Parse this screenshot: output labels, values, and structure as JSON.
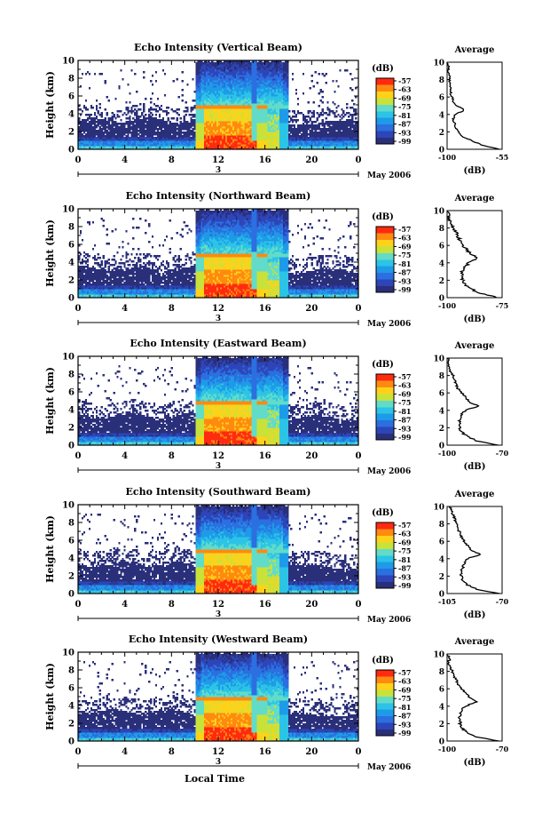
{
  "figure": {
    "xlabel": "Local Time",
    "x_ticks": [
      "0",
      "4",
      "8",
      "12",
      "16",
      "20",
      "0"
    ],
    "date_marker": "3",
    "date_text": "May 2006",
    "ylabel": "Height (km)",
    "y_ticks": [
      "0",
      "2",
      "4",
      "6",
      "8",
      "10"
    ],
    "colorbar_unit": "(dB)",
    "colorbar_ticks": [
      "-57",
      "-63",
      "-69",
      "-75",
      "-81",
      "-87",
      "-93",
      "-99"
    ],
    "colorbar_colors": [
      "#2a2f7a",
      "#2d45b8",
      "#2b6fe0",
      "#1e9be8",
      "#2cc4e6",
      "#62dcc8",
      "#c8e23a",
      "#ffd21a",
      "#ff8a10",
      "#ff2a10"
    ],
    "average_title": "Average",
    "average_xlabel": "(dB)"
  },
  "chart_data": [
    {
      "type": "heatmap",
      "title": "Echo Intensity (Vertical Beam)",
      "xlabel": "Local Time",
      "ylabel": "Height (km)",
      "xlim": [
        0,
        24
      ],
      "ylim": [
        0,
        10
      ],
      "clim": [
        -99,
        -57
      ],
      "features": {
        "rain_start_h": 10,
        "rain_end_h": 18,
        "rain_gap_h": [
          14.8,
          15.3
        ],
        "bright_band_km": 4.7
      },
      "average_profile": {
        "title": "Average",
        "xlabel": "(dB)",
        "xlim": [
          -100,
          -55
        ],
        "x_ticks": [
          "-100",
          "-55"
        ],
        "height_km": [
          0,
          0.5,
          1,
          1.5,
          2,
          2.5,
          3,
          3.5,
          4,
          4.5,
          5,
          5.5,
          6,
          6.5,
          7,
          7.5,
          8,
          8.5,
          9,
          9.5,
          10
        ],
        "db": [
          -57,
          -72,
          -80,
          -88,
          -91,
          -93,
          -94,
          -95,
          -93,
          -86,
          -92,
          -95,
          -96,
          -97,
          -97,
          -98,
          -98,
          -98,
          -99,
          -99,
          -100
        ]
      }
    },
    {
      "type": "heatmap",
      "title": "Echo Intensity (Northward Beam)",
      "xlabel": "Local Time",
      "ylabel": "Height (km)",
      "xlim": [
        0,
        24
      ],
      "ylim": [
        0,
        10
      ],
      "clim": [
        -99,
        -57
      ],
      "features": {
        "rain_start_h": 10,
        "rain_end_h": 18,
        "rain_gap_h": [
          14.8,
          15.3
        ],
        "bright_band_km": 4.7
      },
      "average_profile": {
        "title": "Average",
        "xlabel": "(dB)",
        "xlim": [
          -100,
          -75
        ],
        "x_ticks": [
          "-100",
          "-75"
        ],
        "height_km": [
          0,
          0.5,
          1,
          1.5,
          2,
          2.5,
          3,
          3.5,
          4,
          4.5,
          5,
          5.5,
          6,
          6.5,
          7,
          7.5,
          8,
          8.5,
          9,
          9.5,
          10
        ],
        "db": [
          -77,
          -85,
          -89,
          -92,
          -93,
          -93,
          -93,
          -92,
          -90,
          -86,
          -89,
          -91,
          -93,
          -94,
          -95,
          -96,
          -97,
          -98,
          -99,
          -99,
          -100
        ]
      }
    },
    {
      "type": "heatmap",
      "title": "Echo Intensity (Eastward Beam)",
      "xlabel": "Local Time",
      "ylabel": "Height (km)",
      "xlim": [
        0,
        24
      ],
      "ylim": [
        0,
        10
      ],
      "clim": [
        -99,
        -57
      ],
      "features": {
        "rain_start_h": 10,
        "rain_end_h": 18,
        "rain_gap_h": [
          14.8,
          15.3
        ],
        "bright_band_km": 4.7
      },
      "average_profile": {
        "title": "Average",
        "xlabel": "(dB)",
        "xlim": [
          -100,
          -70
        ],
        "x_ticks": [
          "-100",
          "-70"
        ],
        "height_km": [
          0,
          0.5,
          1,
          1.5,
          2,
          2.5,
          3,
          3.5,
          4,
          4.5,
          5,
          5.5,
          6,
          6.5,
          7,
          7.5,
          8,
          8.5,
          9,
          9.5,
          10
        ],
        "db": [
          -72,
          -84,
          -89,
          -92,
          -93,
          -93,
          -93,
          -92,
          -90,
          -83,
          -88,
          -90,
          -92,
          -94,
          -95,
          -96,
          -97,
          -98,
          -99,
          -99,
          -100
        ]
      }
    },
    {
      "type": "heatmap",
      "title": "Echo Intensity (Southward Beam)",
      "xlabel": "Local Time",
      "ylabel": "Height (km)",
      "xlim": [
        0,
        24
      ],
      "ylim": [
        0,
        10
      ],
      "clim": [
        -99,
        -57
      ],
      "features": {
        "rain_start_h": 10,
        "rain_end_h": 18,
        "rain_gap_h": [
          14.8,
          15.3
        ],
        "bright_band_km": 4.7
      },
      "average_profile": {
        "title": "Average",
        "xlabel": "(dB)",
        "xlim": [
          -105,
          -70
        ],
        "x_ticks": [
          "-105",
          "-70"
        ],
        "height_km": [
          0,
          0.5,
          1,
          1.5,
          2,
          2.5,
          3,
          3.5,
          4,
          4.5,
          5,
          5.5,
          6,
          6.5,
          7,
          7.5,
          8,
          8.5,
          9,
          9.5,
          10
        ],
        "db": [
          -72,
          -86,
          -92,
          -95,
          -96,
          -96,
          -95,
          -94,
          -92,
          -84,
          -90,
          -92,
          -94,
          -96,
          -97,
          -98,
          -99,
          -100,
          -101,
          -102,
          -103
        ]
      }
    },
    {
      "type": "heatmap",
      "title": "Echo Intensity (Westward Beam)",
      "xlabel": "Local Time",
      "ylabel": "Height (km)",
      "xlim": [
        0,
        24
      ],
      "ylim": [
        0,
        10
      ],
      "clim": [
        -99,
        -57
      ],
      "features": {
        "rain_start_h": 10,
        "rain_end_h": 18,
        "rain_gap_h": [
          14.8,
          15.3
        ],
        "bright_band_km": 4.7
      },
      "average_profile": {
        "title": "Average",
        "xlabel": "(dB)",
        "xlim": [
          -100,
          -70
        ],
        "x_ticks": [
          "-100",
          "-70"
        ],
        "height_km": [
          0,
          0.5,
          1,
          1.5,
          2,
          2.5,
          3,
          3.5,
          4,
          4.5,
          5,
          5.5,
          6,
          6.5,
          7,
          7.5,
          8,
          8.5,
          9,
          9.5,
          10
        ],
        "db": [
          -72,
          -84,
          -89,
          -92,
          -93,
          -93,
          -93,
          -92,
          -90,
          -84,
          -88,
          -90,
          -92,
          -94,
          -95,
          -96,
          -97,
          -98,
          -99,
          -99,
          -100
        ]
      }
    }
  ]
}
